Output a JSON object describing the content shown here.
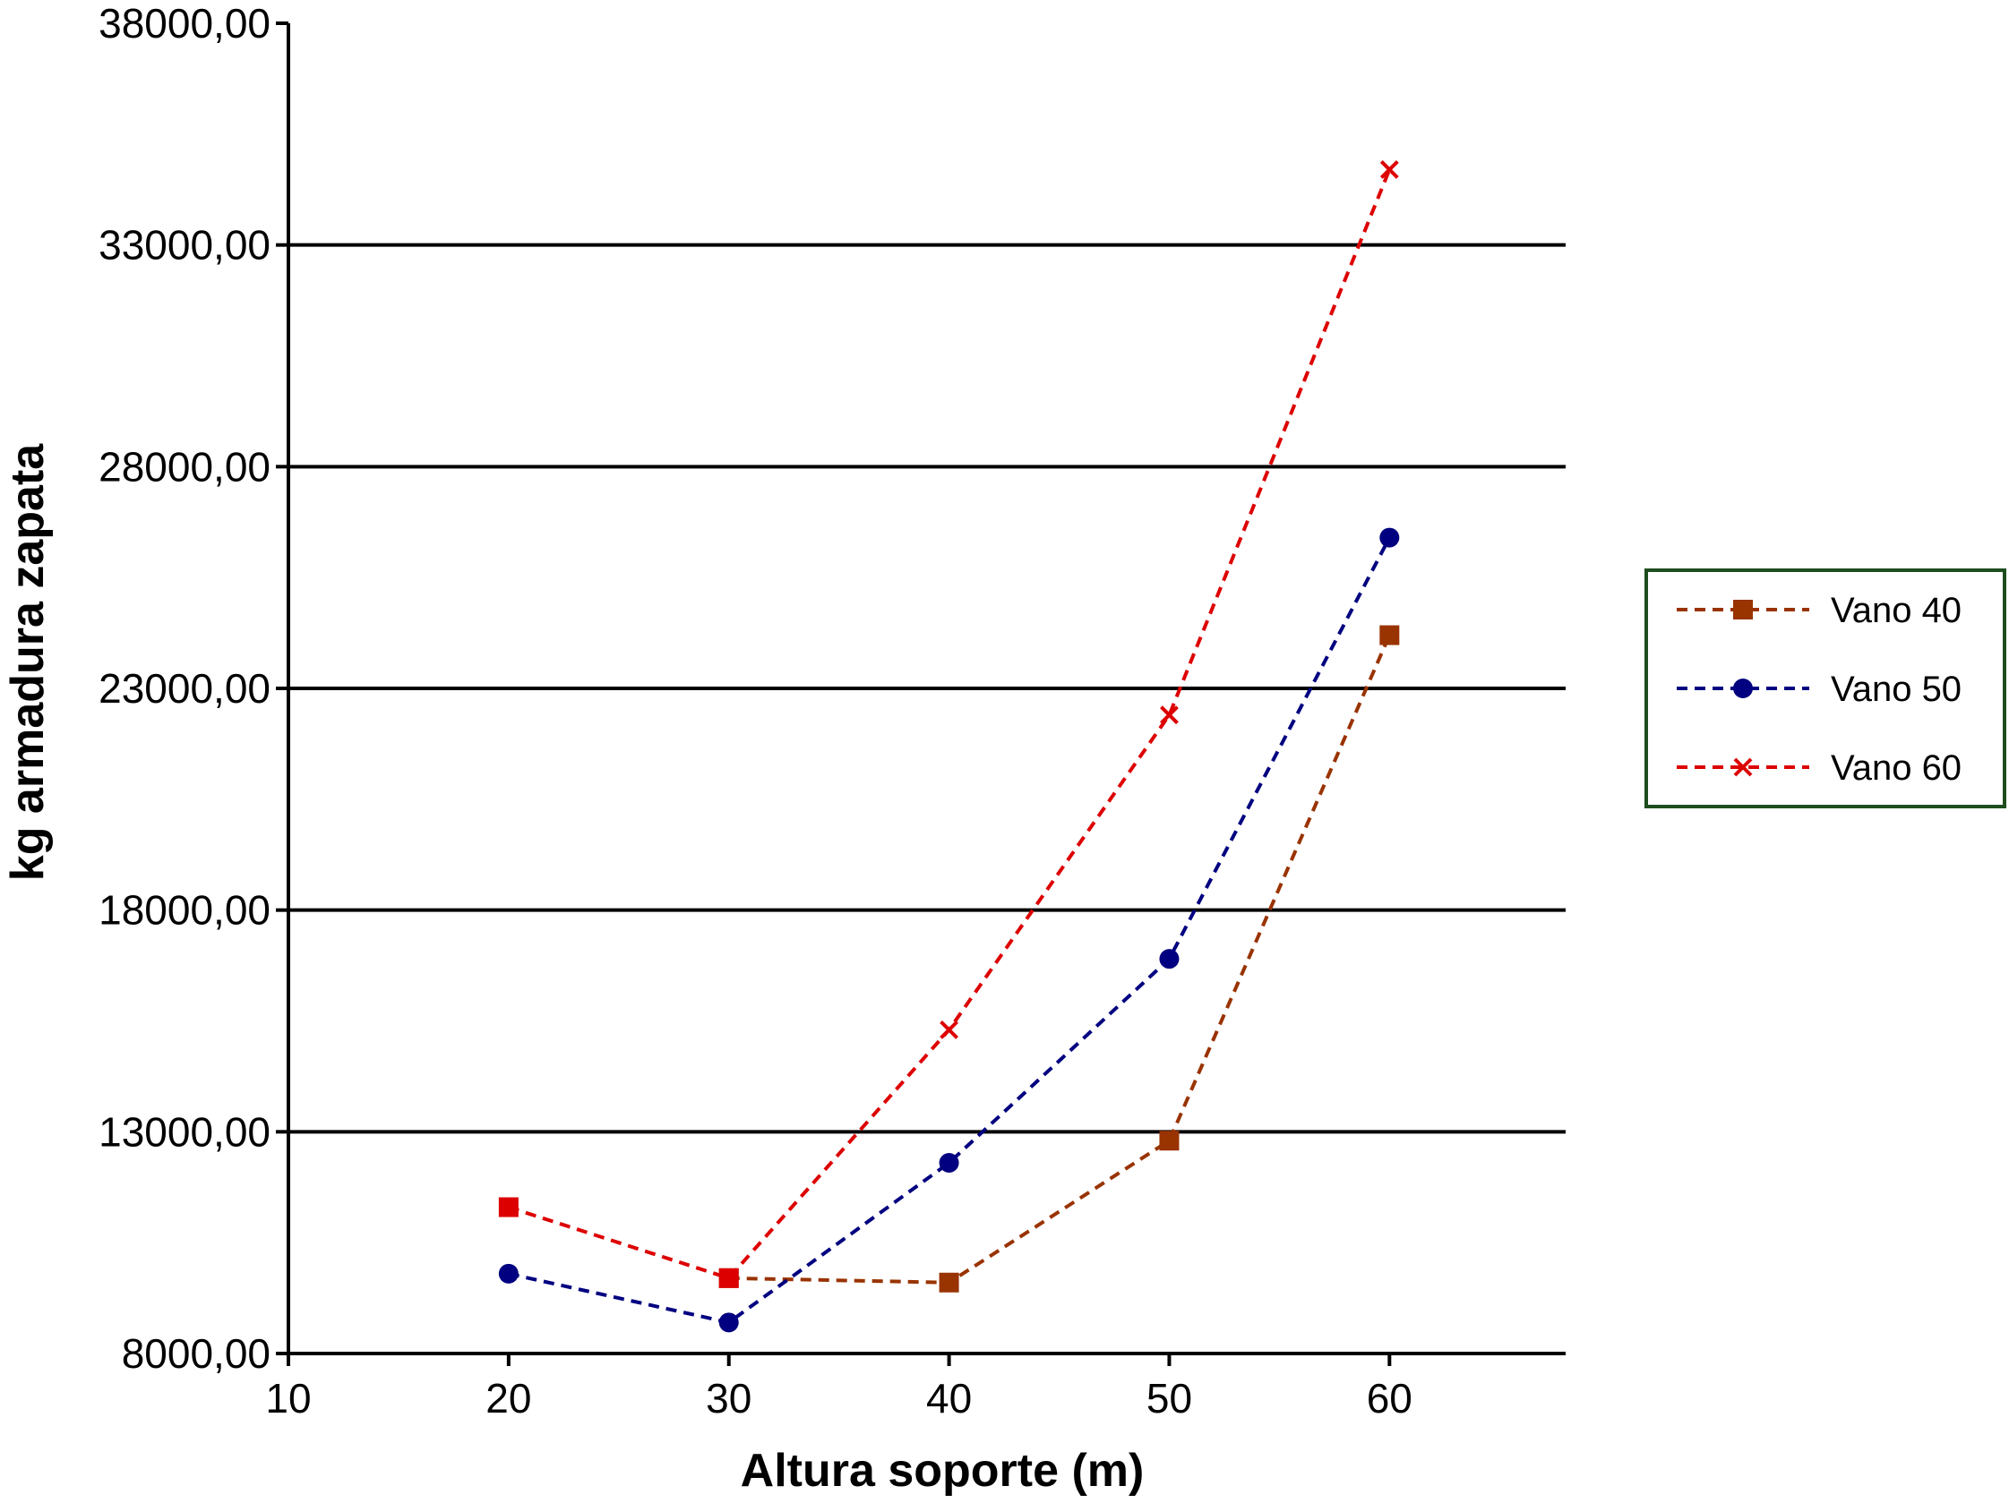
{
  "chart_data": {
    "type": "line",
    "xlabel": "Altura soporte (m)",
    "ylabel": "kg armadura zapata",
    "xlim": [
      10,
      68
    ],
    "ylim": [
      8000,
      38000
    ],
    "x_ticks": [
      "10",
      "20",
      "30",
      "40",
      "50",
      "60"
    ],
    "y_ticks": [
      "8000,00",
      "13000,00",
      "18000,00",
      "23000,00",
      "28000,00",
      "33000,00",
      "38000,00"
    ],
    "grid": "horizontal major lines",
    "legend_position": "right",
    "series": [
      {
        "name": "Vano 40",
        "color": "#993300",
        "marker": "square",
        "line_style": "dashed",
        "points": [
          [
            30,
            9700
          ],
          [
            40,
            9600
          ],
          [
            50,
            12800
          ],
          [
            60,
            24200
          ]
        ]
      },
      {
        "name": "Vano 50",
        "color": "#000080",
        "marker": "circle",
        "line_style": "dashed",
        "points": [
          [
            20,
            9800
          ],
          [
            30,
            8700
          ],
          [
            40,
            12300
          ],
          [
            50,
            16900
          ],
          [
            60,
            26400
          ]
        ]
      },
      {
        "name": "Vano 60",
        "color": "#dd0000",
        "marker": "x",
        "line_style": "dashed",
        "points": [
          [
            20,
            11300
          ],
          [
            30,
            9700
          ],
          [
            40,
            15300
          ],
          [
            50,
            22400
          ],
          [
            60,
            34700
          ]
        ]
      }
    ]
  }
}
